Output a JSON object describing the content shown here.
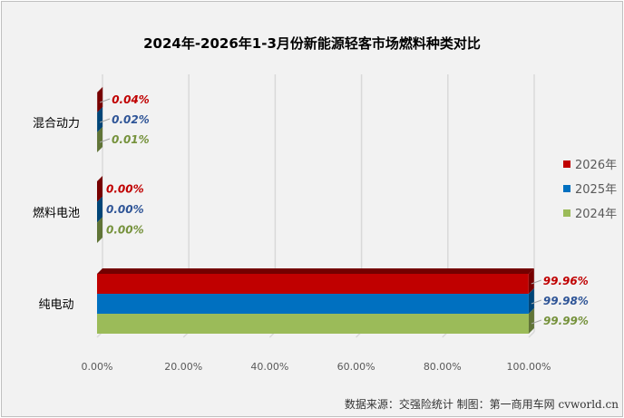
{
  "chart_data": {
    "type": "bar",
    "orientation": "horizontal",
    "style": "3d-clustered",
    "title": "2024年-2026年1-3月份新能源轻客市场燃料种类对比",
    "categories": [
      "混合动力",
      "燃料电池",
      "纯电动"
    ],
    "series": [
      {
        "name": "2026年",
        "color": "#c00000",
        "values": [
          0.04,
          0.0,
          99.96
        ],
        "labels": [
          "0.04%",
          "0.00%",
          "99.96%"
        ]
      },
      {
        "name": "2025年",
        "color": "#0070c0",
        "values": [
          0.02,
          0.0,
          99.98
        ],
        "labels": [
          "0.02%",
          "0.00%",
          "99.98%"
        ]
      },
      {
        "name": "2024年",
        "color": "#9bbb59",
        "values": [
          0.01,
          0.0,
          99.99
        ],
        "labels": [
          "0.01%",
          "0.00%",
          "99.99%"
        ]
      }
    ],
    "label_colors": [
      "#c00000",
      "#2f5597",
      "#76923c"
    ],
    "xlim": [
      0,
      100
    ],
    "xticks": [
      "0.00%",
      "20.00%",
      "40.00%",
      "60.00%",
      "80.00%",
      "100.00%"
    ],
    "grid": true,
    "legend": "right"
  },
  "footer": "数据来源：交强险统计  制图：第一商用车网 cvworld.cn"
}
